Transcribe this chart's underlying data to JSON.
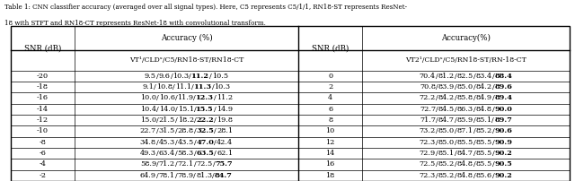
{
  "caption_line1": "Table 1: CNN classifier accuracy (averaged over all signal types). Here, C5 represents C5/1/1, RN18-ST represents ResNet-",
  "caption_line2": "18 with STFT and RN18-CT represents ResNet-18 with convolutional transform.",
  "left_data": [
    [
      "-20",
      "9.5/9.6/10.3/",
      "11.2",
      "/10.5"
    ],
    [
      "-18",
      "9.1/10.8/11.1/",
      "11.3",
      "/10.3"
    ],
    [
      "-16",
      "10.0/10.6/11.9/",
      "12.3",
      "/11.2"
    ],
    [
      "-14",
      "10.4/14.0/15.1/",
      "15.5",
      "/14.9"
    ],
    [
      "-12",
      "15.0/21.5/18.2/",
      "22.2",
      "/19.8"
    ],
    [
      "-10",
      "22.7/31.5/28.8/",
      "32.5",
      "/28.1"
    ],
    [
      "-8",
      "34.8/45.3/43.5/",
      "47.0",
      "/42.4"
    ],
    [
      "-6",
      "49.3/63.4/58.3/",
      "63.5",
      "/62.1"
    ],
    [
      "-4",
      "58.9/71.2/72.1/72.5/",
      "75.7",
      ""
    ],
    [
      "-2",
      "64.9/78.1/78.9/81.3/",
      "84.7",
      ""
    ]
  ],
  "right_data": [
    [
      "0",
      "70.4/81.2/82.5/83.4/",
      "88.4"
    ],
    [
      "2",
      "70.8/83.9/85.0/84.2/",
      "89.6"
    ],
    [
      "4",
      "72.2/84.2/85.8/84.9/",
      "89.4"
    ],
    [
      "6",
      "72.7/84.5/86.3/84.8/",
      "90.0"
    ],
    [
      "8",
      "71.7/84.7/85.9/85.1/",
      "89.7"
    ],
    [
      "10",
      "73.2/85.0/87.1/85.2/",
      "90.6"
    ],
    [
      "12",
      "72.3/85.0/85.5/85.5/",
      "90.9"
    ],
    [
      "14",
      "72.9/85.1/84.7/85.5/",
      "90.2"
    ],
    [
      "16",
      "72.5/85.2/84.8/85.5/",
      "90.5"
    ],
    [
      "18",
      "72.3/85.2/84.8/85.6/",
      "90.2"
    ]
  ],
  "left_full": [
    [
      "-20",
      "9.5/9.6/10.3/11.2/10.5"
    ],
    [
      "-18",
      "9.1/10.8/11.1/11.3/10.3"
    ],
    [
      "-16",
      "10.0/10.6/11.9/12.3/11.2"
    ],
    [
      "-14",
      "10.4/14.0/15.1/15.5/14.9"
    ],
    [
      "-12",
      "15.0/21.5/18.2/22.2/19.8"
    ],
    [
      "-10",
      "22.7/31.5/28.8/32.5/28.1"
    ],
    [
      "-8",
      "34.8/45.3/43.5/47.0/42.4"
    ],
    [
      "-6",
      "49.3/63.4/58.3/63.5/62.1"
    ],
    [
      "-4",
      "58.9/71.2/72.1/72.5/75.7"
    ],
    [
      "-2",
      "64.9/78.1/78.9/81.3/84.7"
    ]
  ],
  "right_full": [
    [
      "0",
      "70.4/81.2/82.5/83.4/88.4"
    ],
    [
      "2",
      "70.8/83.9/85.0/84.2/89.6"
    ],
    [
      "4",
      "72.2/84.2/85.8/84.9/89.4"
    ],
    [
      "6",
      "72.7/84.5/86.3/84.8/90.0"
    ],
    [
      "8",
      "71.7/84.7/85.9/85.1/89.7"
    ],
    [
      "10",
      "73.2/85.0/87.1/85.2/90.6"
    ],
    [
      "12",
      "72.3/85.0/85.5/85.5/90.9"
    ],
    [
      "14",
      "72.9/85.1/84.7/85.5/90.2"
    ],
    [
      "16",
      "72.5/85.2/84.8/85.5/90.5"
    ],
    [
      "18",
      "72.3/85.2/84.8/85.6/90.2"
    ]
  ],
  "bold_indices_left": [
    3,
    3,
    3,
    3,
    3,
    3,
    3,
    3,
    4,
    4
  ],
  "bold_indices_right": [
    4,
    4,
    4,
    4,
    4,
    4,
    4,
    4,
    4,
    4
  ]
}
